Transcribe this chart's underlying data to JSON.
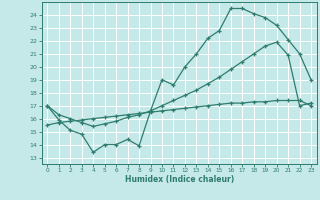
{
  "xlabel": "Humidex (Indice chaleur)",
  "xlim": [
    -0.5,
    23.5
  ],
  "ylim": [
    12.5,
    25.0
  ],
  "yticks": [
    13,
    14,
    15,
    16,
    17,
    18,
    19,
    20,
    21,
    22,
    23,
    24
  ],
  "xticks": [
    0,
    1,
    2,
    3,
    4,
    5,
    6,
    7,
    8,
    9,
    10,
    11,
    12,
    13,
    14,
    15,
    16,
    17,
    18,
    19,
    20,
    21,
    22,
    23
  ],
  "bg_color": "#c5e8e8",
  "line_color": "#2e7d6e",
  "grid_color": "#ffffff",
  "line1_x": [
    0,
    1,
    2,
    3,
    4,
    5,
    6,
    7,
    8,
    9,
    10,
    11,
    12,
    13,
    14,
    15,
    16,
    17,
    18,
    19,
    20,
    21,
    22,
    23
  ],
  "line1_y": [
    17.0,
    15.9,
    15.1,
    14.8,
    13.4,
    14.0,
    14.0,
    14.4,
    13.9,
    16.6,
    19.0,
    18.6,
    20.0,
    21.0,
    22.2,
    22.8,
    24.5,
    24.5,
    24.1,
    23.8,
    23.2,
    22.1,
    21.0,
    19.0
  ],
  "line2_x": [
    0,
    1,
    2,
    3,
    4,
    5,
    6,
    7,
    8,
    9,
    10,
    11,
    12,
    13,
    14,
    15,
    16,
    17,
    18,
    19,
    20,
    21,
    22,
    23
  ],
  "line2_y": [
    17.0,
    16.3,
    16.0,
    15.7,
    15.4,
    15.6,
    15.8,
    16.1,
    16.3,
    16.6,
    17.0,
    17.4,
    17.8,
    18.2,
    18.7,
    19.2,
    19.8,
    20.4,
    21.0,
    21.6,
    21.9,
    20.9,
    17.0,
    17.2
  ],
  "line3_x": [
    0,
    1,
    2,
    3,
    4,
    5,
    6,
    7,
    8,
    9,
    10,
    11,
    12,
    13,
    14,
    15,
    16,
    17,
    18,
    19,
    20,
    21,
    22,
    23
  ],
  "line3_y": [
    15.5,
    15.7,
    15.8,
    15.9,
    16.0,
    16.1,
    16.2,
    16.3,
    16.4,
    16.5,
    16.6,
    16.7,
    16.8,
    16.9,
    17.0,
    17.1,
    17.2,
    17.2,
    17.3,
    17.3,
    17.4,
    17.4,
    17.4,
    17.0
  ]
}
